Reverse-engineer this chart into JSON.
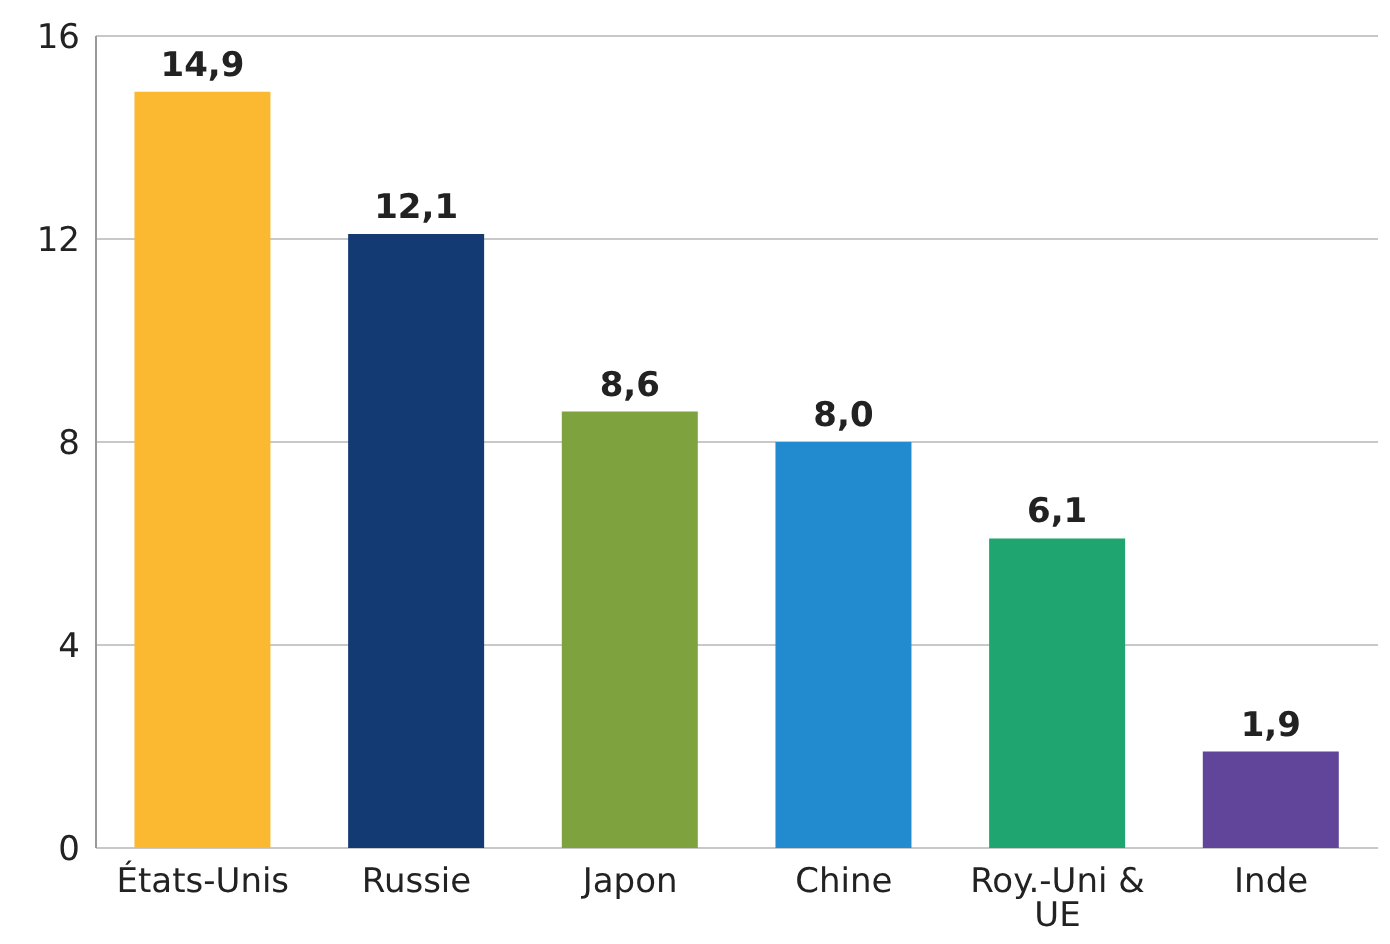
{
  "chart_data": {
    "type": "bar",
    "categories": [
      "États-Unis",
      "Russie",
      "Japon",
      "Chine",
      "Roy.-Uni & UE",
      "Inde"
    ],
    "values": [
      14.9,
      12.1,
      8.6,
      8.0,
      6.1,
      1.9
    ],
    "value_labels": [
      "14,9",
      "12,1",
      "8,6",
      "8,0",
      "6,1",
      "1,9"
    ],
    "colors": [
      "#fbb931",
      "#133a73",
      "#7da23e",
      "#228bd0",
      "#1fa56f",
      "#60459b"
    ],
    "ylim": [
      0,
      16
    ],
    "yticks": [
      0,
      4,
      8,
      12,
      16
    ],
    "grid": "y"
  }
}
